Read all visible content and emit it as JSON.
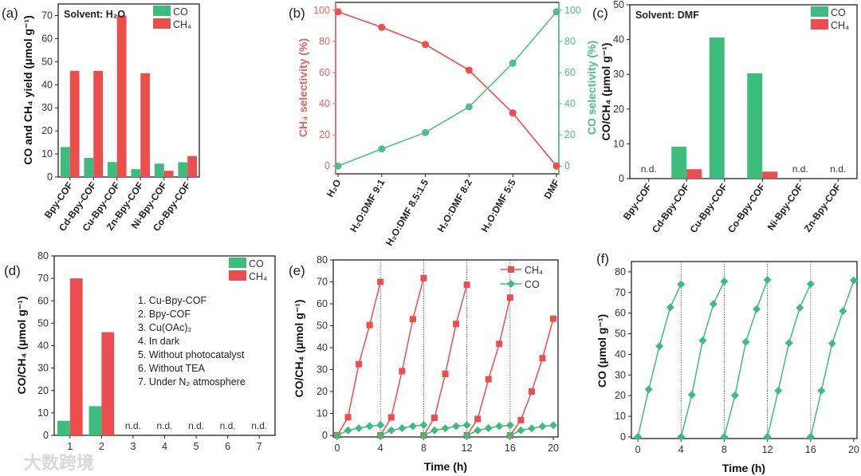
{
  "colors": {
    "co": "#3dbd7d",
    "ch4": "#ec4d4d",
    "b_left": "#e06666",
    "b_right": "#4cc08c"
  },
  "watermark": "大数跨境",
  "chart_data": [
    {
      "panel": "(a)",
      "type": "bar",
      "note": "Solvent: H₂O",
      "ylabel": "CO and CH₄ yield (μmol g⁻¹)",
      "xlabel": "",
      "categories": [
        "Bpy-COF",
        "Cd-Bpy-COF",
        "Cu-Bpy-COF",
        "Zn-Bpy-COF",
        "Ni-Bpy-COF",
        "Co-Bpy-COF"
      ],
      "series": [
        {
          "name": "CO",
          "values": [
            13,
            8.3,
            6.5,
            3.4,
            5.8,
            6.4
          ]
        },
        {
          "name": "CH₄",
          "values": [
            46,
            46,
            70,
            45,
            2.7,
            9.1
          ]
        }
      ],
      "ylim": [
        0,
        75
      ],
      "yticks": [
        "0",
        "10",
        "20",
        "30",
        "40",
        "50",
        "60",
        "70"
      ],
      "ytick_values": [
        0,
        10,
        20,
        30,
        40,
        50,
        60,
        70
      ],
      "legend": "top-right"
    },
    {
      "panel": "(b)",
      "type": "line",
      "ylabel": "CH₄ selectivity (%)",
      "ylabel_right": "CO selectivity (%)",
      "categories": [
        "H₂O",
        "H₂O:DMF 9:1",
        "H₂O:DMF 8.5:1.5",
        "H₂O:DMF 8:2",
        "H₂O:DMF 5:5",
        "DMF"
      ],
      "series": [
        {
          "name": "CH₄",
          "axis": "left",
          "values": [
            99,
            89,
            78,
            61.5,
            34,
            0
          ]
        },
        {
          "name": "CO",
          "axis": "right",
          "values": [
            0,
            11,
            21.5,
            38,
            66,
            99
          ]
        }
      ],
      "ylim": [
        -5,
        105
      ],
      "yticks": [
        "0",
        "20",
        "40",
        "60",
        "80",
        "100"
      ],
      "ytick_values": [
        0,
        20,
        40,
        60,
        80,
        100
      ]
    },
    {
      "panel": "(c)",
      "type": "bar",
      "note": "Solvent: DMF",
      "ylabel": "CO/CH₄ (μmol g⁻¹)",
      "categories": [
        "Bpy-COF",
        "Cd-Bpy-COF",
        "Cu-Bpy-COF",
        "Co-Bpy-COF",
        "Ni-Bpy-COF",
        "Zn-Bpy-COF"
      ],
      "series": [
        {
          "name": "CO",
          "values": [
            0,
            9.2,
            40.6,
            30.3,
            0,
            0
          ]
        },
        {
          "name": "CH₄",
          "values": [
            0,
            2.7,
            0,
            2.0,
            0,
            0
          ]
        }
      ],
      "nd_label": "n.d.",
      "nd_indices": [
        0,
        4,
        5
      ],
      "ylim": [
        0,
        50
      ],
      "yticks": [
        "0",
        "10",
        "20",
        "30",
        "40",
        "50"
      ],
      "ytick_values": [
        0,
        10,
        20,
        30,
        40,
        50
      ],
      "legend": "top-right"
    },
    {
      "panel": "(d)",
      "type": "bar",
      "ylabel": "CO/CH₄ (μmol g⁻¹)",
      "categories": [
        "1",
        "2",
        "3",
        "4",
        "5",
        "6",
        "7"
      ],
      "series": [
        {
          "name": "CO",
          "values": [
            6.5,
            13,
            0,
            0,
            0,
            0,
            0
          ]
        },
        {
          "name": "CH₄",
          "values": [
            70,
            46,
            0,
            0,
            0,
            0,
            0
          ]
        }
      ],
      "nd_label": "n.d.",
      "nd_indices": [
        2,
        3,
        4,
        5,
        6
      ],
      "conditions": [
        "1. Cu-Bpy-COF",
        "2. Bpy-COF",
        "3. Cu(OAc)₂",
        "4. In dark",
        "5. Without photocatalyst",
        "6. Without TEA",
        "7. Under N₂ atmosphere"
      ],
      "ylim": [
        0,
        80
      ],
      "yticks": [
        "0",
        "10",
        "20",
        "30",
        "40",
        "50",
        "60",
        "70",
        "80"
      ],
      "ytick_values": [
        0,
        10,
        20,
        30,
        40,
        50,
        60,
        70,
        80
      ],
      "legend": "top-right"
    },
    {
      "panel": "(e)",
      "type": "line",
      "xlabel": "Time (h)",
      "ylabel": "CO/CH₄ (μmol g⁻¹)",
      "x": [
        [
          0,
          1,
          2,
          3,
          4
        ],
        [
          4,
          5,
          6,
          7,
          8
        ],
        [
          8,
          9,
          10,
          11,
          12
        ],
        [
          12,
          13,
          14,
          15,
          16
        ],
        [
          16,
          17,
          18,
          19,
          20
        ]
      ],
      "series": [
        {
          "name": "CH₄",
          "marker": "square",
          "values": [
            [
              0,
              8.3,
              32.5,
              50.3,
              70
            ],
            [
              0,
              8.2,
              29.3,
              53,
              71.7
            ],
            [
              0,
              8,
              28,
              50.8,
              68.7
            ],
            [
              0,
              7.5,
              25.6,
              41.7,
              62.8
            ],
            [
              0,
              7,
              20,
              35.2,
              53.2
            ]
          ]
        },
        {
          "name": "CO",
          "marker": "diamond",
          "values": [
            [
              0,
              2.3,
              3.3,
              4.2,
              4.7
            ],
            [
              0,
              2.3,
              3.3,
              4.2,
              4.7
            ],
            [
              0,
              2.3,
              3.2,
              4.2,
              4.7
            ],
            [
              0,
              2.3,
              3.3,
              4.2,
              4.6
            ],
            [
              0,
              2.3,
              3.2,
              4.1,
              4.6
            ]
          ]
        }
      ],
      "xlim": [
        -0.37,
        20.44
      ],
      "xticks": [
        "0",
        "4",
        "8",
        "12",
        "16",
        "20"
      ],
      "xtick_values": [
        0,
        4,
        8,
        12,
        16,
        20
      ],
      "ylim": [
        -0.7,
        80
      ],
      "yticks": [
        "0",
        "10",
        "20",
        "30",
        "40",
        "50",
        "60",
        "70",
        "80"
      ],
      "ytick_values": [
        0,
        10,
        20,
        30,
        40,
        50,
        60,
        70,
        80
      ],
      "vlines": [
        4,
        8,
        12,
        16
      ],
      "legend": "top-right"
    },
    {
      "panel": "(f)",
      "type": "line",
      "xlabel": "Time (h)",
      "ylabel": "CO (μmol g⁻¹)",
      "x": [
        [
          0,
          1,
          2,
          3,
          4
        ],
        [
          4,
          5,
          6,
          7,
          8
        ],
        [
          8,
          9,
          10,
          11,
          12
        ],
        [
          12,
          13,
          14,
          15,
          16
        ],
        [
          16,
          17,
          18,
          19,
          20
        ]
      ],
      "series": [
        {
          "name": "CO",
          "marker": "diamond",
          "values": [
            [
              0,
              23,
              44,
              62.8,
              74
            ],
            [
              0,
              20.4,
              46.7,
              64.4,
              75.4
            ],
            [
              0,
              20.1,
              46,
              61.9,
              76.1
            ],
            [
              0,
              22.4,
              45.5,
              62.6,
              74.1
            ],
            [
              0,
              22.4,
              45.3,
              61,
              75.8
            ]
          ]
        }
      ],
      "xlim": [
        -0.6,
        20.3
      ],
      "xticks": [
        "0",
        "4",
        "8",
        "12",
        "16",
        "20"
      ],
      "xtick_values": [
        0,
        4,
        8,
        12,
        16,
        20
      ],
      "ylim": [
        -0.8,
        85
      ],
      "yticks": [
        "0",
        "10",
        "20",
        "30",
        "40",
        "50",
        "60",
        "70",
        "80"
      ],
      "ytick_values": [
        0,
        10,
        20,
        30,
        40,
        50,
        60,
        70,
        80
      ],
      "vlines": [
        4,
        8,
        12,
        16
      ]
    }
  ]
}
